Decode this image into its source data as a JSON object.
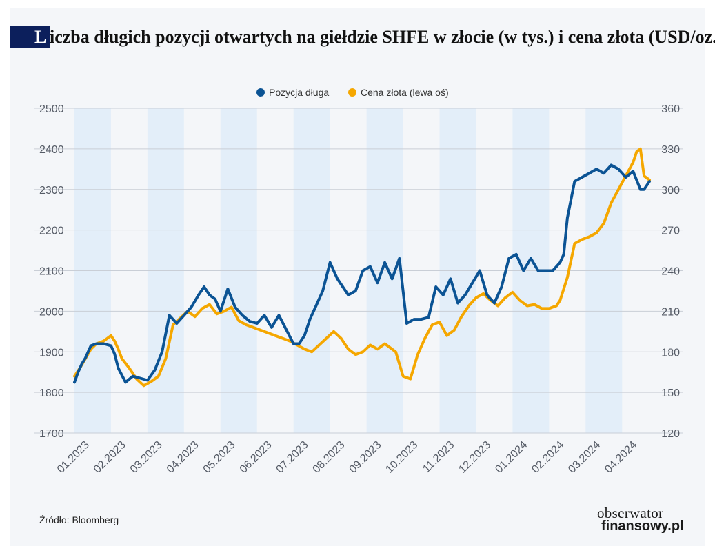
{
  "title": {
    "first_letter": "L",
    "rest": "iczba długich pozycji otwartych na giełdzie SHFE w złocie (w tys.) i cena złota (USD/oz.)"
  },
  "source": "Źródło: Bloomberg",
  "brand": {
    "line1": "obserwator",
    "line2": "finansowy.pl"
  },
  "colors": {
    "long_position": "#0b5394",
    "gold_price": "#f5a700",
    "title_block": "#0c1f5c",
    "band": "#e3eef9"
  },
  "chart_data": {
    "type": "line",
    "title": "Liczba długich pozycji otwartych na giełdzie SHFE w złocie (w tys.) i cena złota (USD/oz.)",
    "x_label": "",
    "categories": [
      "01.2023",
      "02.2023",
      "03.2023",
      "04.2023",
      "05.2023",
      "06.2023",
      "07.2023",
      "08.2023",
      "09.2023",
      "10.2023",
      "11.2023",
      "12.2023",
      "01.2024",
      "02.2024",
      "03.2024",
      "04.2024"
    ],
    "left_axis": {
      "ticks": [
        "2500",
        "2400",
        "2300",
        "2200",
        "2100",
        "2000",
        "1900",
        "1800",
        "1700"
      ],
      "range": [
        1700,
        2500
      ]
    },
    "right_axis": {
      "ticks": [
        "360",
        "330",
        "300",
        "270",
        "240",
        "210",
        "180",
        "150",
        "120"
      ],
      "range": [
        120,
        360
      ]
    },
    "legend": {
      "position": "top-center",
      "items": [
        "Pozycja długa",
        "Cena złota (lewa oś)"
      ]
    },
    "x_range": [
      0,
      15.75
    ],
    "series": [
      {
        "name": "Pozycja długa",
        "axis": "left",
        "x": [
          0,
          0.1,
          0.2,
          0.3,
          0.45,
          0.6,
          0.8,
          1.0,
          1.1,
          1.2,
          1.4,
          1.6,
          1.8,
          2.0,
          2.2,
          2.4,
          2.6,
          2.8,
          3.0,
          3.2,
          3.4,
          3.55,
          3.7,
          3.85,
          4.0,
          4.2,
          4.4,
          4.6,
          4.8,
          5.0,
          5.2,
          5.4,
          5.6,
          5.8,
          6.0,
          6.15,
          6.3,
          6.45,
          6.6,
          6.8,
          7.0,
          7.2,
          7.35,
          7.5,
          7.7,
          7.9,
          8.1,
          8.3,
          8.5,
          8.7,
          8.9,
          9.1,
          9.3,
          9.5,
          9.7,
          9.9,
          10.1,
          10.3,
          10.5,
          10.7,
          10.9,
          11.1,
          11.3,
          11.5,
          11.7,
          11.9,
          12.1,
          12.3,
          12.5,
          12.7,
          12.9,
          13.1,
          13.3,
          13.4,
          13.5,
          13.7,
          13.9,
          14.1,
          14.3,
          14.5,
          14.7,
          14.9,
          15.1,
          15.3,
          15.5,
          15.6,
          15.75
        ],
        "values": [
          1825,
          1850,
          1870,
          1885,
          1915,
          1920,
          1920,
          1915,
          1895,
          1860,
          1825,
          1840,
          1835,
          1830,
          1855,
          1900,
          1990,
          1970,
          1990,
          2010,
          2040,
          2060,
          2040,
          2030,
          2000,
          2055,
          2010,
          1990,
          1975,
          1970,
          1990,
          1960,
          1990,
          1955,
          1920,
          1920,
          1940,
          1980,
          2010,
          2050,
          2120,
          2080,
          2060,
          2040,
          2050,
          2100,
          2110,
          2070,
          2120,
          2080,
          2130,
          1970,
          1980,
          1980,
          1985,
          2060,
          2040,
          2080,
          2020,
          2040,
          2070,
          2100,
          2040,
          2020,
          2060,
          2130,
          2140,
          2100,
          2130,
          2100,
          2100,
          2100,
          2120,
          2140,
          2230,
          2320,
          2330,
          2340,
          2350,
          2340,
          2360,
          2350,
          2330,
          2345,
          2300,
          2300,
          2320
        ]
      },
      {
        "name": "Cena złota (lewa oś)",
        "axis": "right",
        "x": [
          0,
          0.15,
          0.3,
          0.45,
          0.6,
          0.8,
          1.0,
          1.1,
          1.2,
          1.3,
          1.5,
          1.7,
          1.9,
          2.1,
          2.3,
          2.5,
          2.7,
          2.9,
          3.1,
          3.3,
          3.5,
          3.7,
          3.9,
          4.1,
          4.3,
          4.5,
          4.7,
          4.9,
          5.1,
          5.3,
          5.5,
          5.7,
          5.9,
          6.1,
          6.3,
          6.5,
          6.7,
          6.9,
          7.1,
          7.3,
          7.5,
          7.7,
          7.9,
          8.1,
          8.3,
          8.5,
          8.6,
          8.8,
          9.0,
          9.2,
          9.4,
          9.6,
          9.8,
          10.0,
          10.2,
          10.4,
          10.6,
          10.8,
          11.0,
          11.2,
          11.4,
          11.6,
          11.8,
          12.0,
          12.2,
          12.4,
          12.6,
          12.8,
          13.0,
          13.2,
          13.3,
          13.5,
          13.7,
          13.9,
          14.1,
          14.3,
          14.5,
          14.7,
          14.9,
          15.1,
          15.3,
          15.4,
          15.5,
          15.6,
          15.75
        ],
        "values": [
          162,
          168,
          175,
          182,
          186,
          188,
          192,
          188,
          182,
          175,
          168,
          160,
          155,
          158,
          162,
          175,
          200,
          205,
          210,
          206,
          212,
          215,
          208,
          210,
          213,
          203,
          200,
          198,
          196,
          194,
          192,
          190,
          188,
          185,
          182,
          180,
          185,
          190,
          195,
          190,
          182,
          178,
          180,
          185,
          182,
          186,
          184,
          180,
          162,
          160,
          178,
          190,
          200,
          202,
          192,
          196,
          206,
          214,
          220,
          223,
          218,
          214,
          220,
          224,
          218,
          214,
          215,
          212,
          212,
          214,
          218,
          235,
          260,
          263,
          265,
          268,
          275,
          290,
          300,
          310,
          320,
          328,
          330,
          310,
          307
        ]
      }
    ]
  }
}
